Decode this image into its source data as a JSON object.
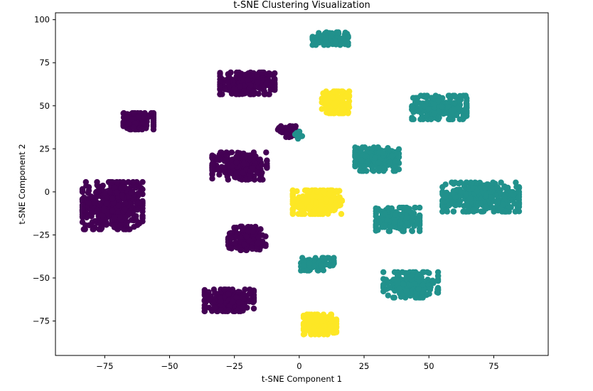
{
  "chart_data": {
    "type": "scatter",
    "title": "t-SNE Clustering Visualization",
    "xlabel": "t-SNE Component 1",
    "ylabel": "t-SNE Component 2",
    "xlim": [
      -94,
      96
    ],
    "ylim": [
      -95,
      104
    ],
    "xticks": [
      -75,
      -50,
      -25,
      0,
      25,
      50,
      75
    ],
    "yticks": [
      -75,
      -50,
      -25,
      0,
      25,
      50,
      75,
      100
    ],
    "xtick_labels": [
      "−75",
      "−50",
      "−25",
      "0",
      "25",
      "50",
      "75"
    ],
    "ytick_labels": [
      "−75",
      "−50",
      "−25",
      "0",
      "25",
      "50",
      "75",
      "100"
    ],
    "grid": false,
    "legend": "none",
    "colormap": "viridis",
    "series": [
      {
        "color": "#440154",
        "clusters": [
          {
            "center": [
              -72,
              -8
            ],
            "spread": [
              11,
              13
            ],
            "count": 420
          },
          {
            "center": [
              -62,
              41
            ],
            "spread": [
              5.5,
              4.5
            ],
            "count": 140
          },
          {
            "center": [
              -20,
              63
            ],
            "spread": [
              10,
              6
            ],
            "count": 230
          },
          {
            "center": [
              -23,
              15
            ],
            "spread": [
              10,
              7.5
            ],
            "count": 230
          },
          {
            "center": [
              -20,
              -27
            ],
            "spread": [
              7,
              6.5
            ],
            "count": 150
          },
          {
            "center": [
              -27,
              -63
            ],
            "spread": [
              9,
              6
            ],
            "count": 200
          },
          {
            "center": [
              -4,
              35
            ],
            "spread": [
              4,
              3
            ],
            "count": 40
          }
        ]
      },
      {
        "color": "#21918c",
        "clusters": [
          {
            "center": [
              12,
              89
            ],
            "spread": [
              6.5,
              3.5
            ],
            "count": 110
          },
          {
            "center": [
              54,
              49
            ],
            "spread": [
              10,
              6.5
            ],
            "count": 220
          },
          {
            "center": [
              30,
              19
            ],
            "spread": [
              8,
              6.5
            ],
            "count": 190
          },
          {
            "center": [
              70,
              -3
            ],
            "spread": [
              14,
              8
            ],
            "count": 330
          },
          {
            "center": [
              38,
              -16
            ],
            "spread": [
              8,
              6.5
            ],
            "count": 190
          },
          {
            "center": [
              7,
              -42
            ],
            "spread": [
              6,
              3.5
            ],
            "count": 90
          },
          {
            "center": [
              43,
              -54
            ],
            "spread": [
              10,
              7
            ],
            "count": 200
          },
          {
            "center": [
              0,
              33
            ],
            "spread": [
              1.5,
              2
            ],
            "count": 12
          }
        ]
      },
      {
        "color": "#fde725",
        "clusters": [
          {
            "center": [
              14,
              52
            ],
            "spread": [
              5,
              6
            ],
            "count": 130
          },
          {
            "center": [
              7,
              -6
            ],
            "spread": [
              9,
              6.5
            ],
            "count": 260
          },
          {
            "center": [
              8,
              -77
            ],
            "spread": [
              6,
              5.5
            ],
            "count": 150
          }
        ]
      }
    ]
  }
}
